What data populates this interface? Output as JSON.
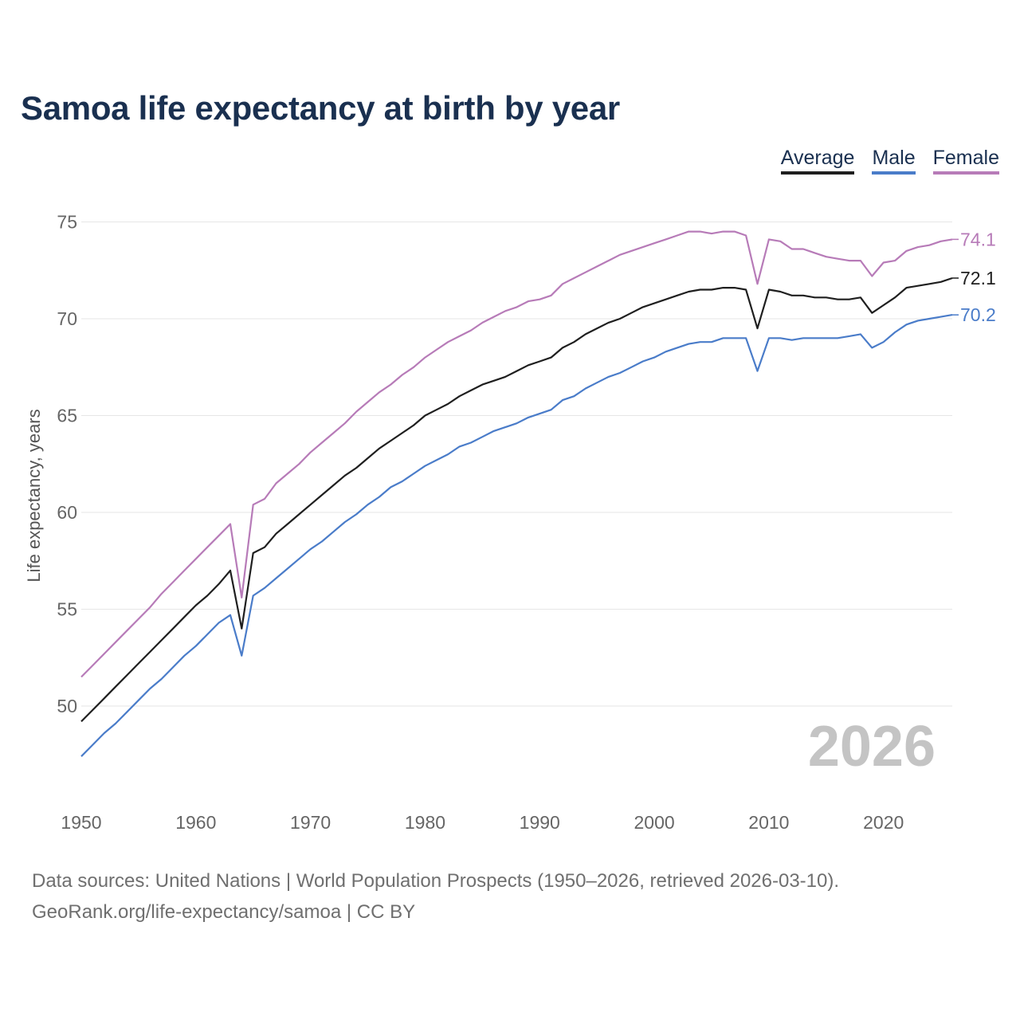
{
  "chart_data": {
    "type": "line",
    "title": "Samoa life expectancy at birth by year",
    "xlabel": "",
    "ylabel": "Life expectancy, years",
    "xlim": [
      1950,
      2026
    ],
    "ylim": [
      46.8,
      76.5
    ],
    "yticks": [
      50,
      55,
      60,
      65,
      70,
      75
    ],
    "xticks": [
      1950,
      1960,
      1970,
      1980,
      1990,
      2000,
      2010,
      2020
    ],
    "grid": true,
    "legend_position": "top-right",
    "watermark_year": "2026",
    "x_start": 1950,
    "series": [
      {
        "name": "Average",
        "color": "#1f1f1f",
        "end_label": "72.1",
        "values": [
          49.2,
          49.8,
          50.4,
          51.0,
          51.6,
          52.2,
          52.8,
          53.4,
          54.0,
          54.6,
          55.2,
          55.7,
          56.3,
          57.0,
          54.0,
          57.9,
          58.2,
          58.9,
          59.4,
          59.9,
          60.4,
          60.9,
          61.4,
          61.9,
          62.3,
          62.8,
          63.3,
          63.7,
          64.1,
          64.5,
          65.0,
          65.3,
          65.6,
          66.0,
          66.3,
          66.6,
          66.8,
          67.0,
          67.3,
          67.6,
          67.8,
          68.0,
          68.5,
          68.8,
          69.2,
          69.5,
          69.8,
          70.0,
          70.3,
          70.6,
          70.8,
          71.0,
          71.2,
          71.4,
          71.5,
          71.5,
          71.6,
          71.6,
          71.5,
          69.5,
          71.5,
          71.4,
          71.2,
          71.2,
          71.1,
          71.1,
          71.0,
          71.0,
          71.1,
          70.3,
          70.7,
          71.1,
          71.6,
          71.7,
          71.8,
          71.9,
          72.1
        ]
      },
      {
        "name": "Male",
        "color": "#4a7cc9",
        "end_label": "70.2",
        "values": [
          47.4,
          48.0,
          48.6,
          49.1,
          49.7,
          50.3,
          50.9,
          51.4,
          52.0,
          52.6,
          53.1,
          53.7,
          54.3,
          54.7,
          52.6,
          55.7,
          56.1,
          56.6,
          57.1,
          57.6,
          58.1,
          58.5,
          59.0,
          59.5,
          59.9,
          60.4,
          60.8,
          61.3,
          61.6,
          62.0,
          62.4,
          62.7,
          63.0,
          63.4,
          63.6,
          63.9,
          64.2,
          64.4,
          64.6,
          64.9,
          65.1,
          65.3,
          65.8,
          66.0,
          66.4,
          66.7,
          67.0,
          67.2,
          67.5,
          67.8,
          68.0,
          68.3,
          68.5,
          68.7,
          68.8,
          68.8,
          69.0,
          69.0,
          69.0,
          67.3,
          69.0,
          69.0,
          68.9,
          69.0,
          69.0,
          69.0,
          69.0,
          69.1,
          69.2,
          68.5,
          68.8,
          69.3,
          69.7,
          69.9,
          70.0,
          70.1,
          70.2
        ]
      },
      {
        "name": "Female",
        "color": "#b77bb8",
        "end_label": "74.1",
        "values": [
          51.5,
          52.1,
          52.7,
          53.3,
          53.9,
          54.5,
          55.1,
          55.8,
          56.4,
          57.0,
          57.6,
          58.2,
          58.8,
          59.4,
          55.6,
          60.4,
          60.7,
          61.5,
          62.0,
          62.5,
          63.1,
          63.6,
          64.1,
          64.6,
          65.2,
          65.7,
          66.2,
          66.6,
          67.1,
          67.5,
          68.0,
          68.4,
          68.8,
          69.1,
          69.4,
          69.8,
          70.1,
          70.4,
          70.6,
          70.9,
          71.0,
          71.2,
          71.8,
          72.1,
          72.4,
          72.7,
          73.0,
          73.3,
          73.5,
          73.7,
          73.9,
          74.1,
          74.3,
          74.5,
          74.5,
          74.4,
          74.5,
          74.5,
          74.3,
          71.8,
          74.1,
          74.0,
          73.6,
          73.6,
          73.4,
          73.2,
          73.1,
          73.0,
          73.0,
          72.2,
          72.9,
          73.0,
          73.5,
          73.7,
          73.8,
          74.0,
          74.1
        ]
      }
    ]
  },
  "footer": {
    "line1": "Data sources: United Nations | World Population Prospects (1950–2026, retrieved 2026-03-10).",
    "line2": "GeoRank.org/life-expectancy/samoa | CC BY"
  }
}
